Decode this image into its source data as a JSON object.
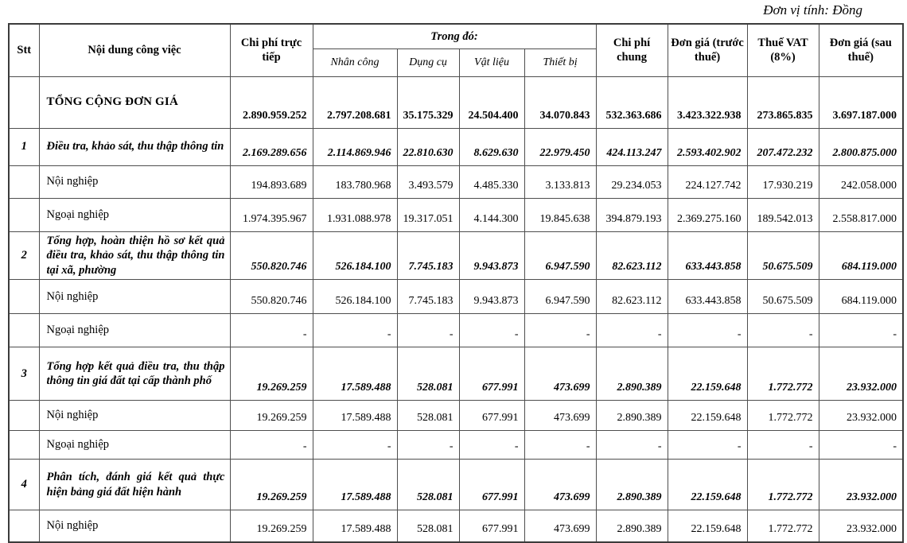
{
  "meta": {
    "unit_note": "Đơn vị tính: Đồng"
  },
  "table": {
    "headers": {
      "stt": "Stt",
      "noi_dung": "Nội dung công việc",
      "chi_phi_truc_tiep": "Chi phí trực tiếp",
      "trong_do": "Trong đó:",
      "sub": [
        "Nhân công",
        "Dụng cụ",
        "Vật liệu",
        "Thiết bị"
      ],
      "chi_phi_chung": "Chi phí chung",
      "don_gia_truoc_thue": "Đơn giá (trước thuế)",
      "thue_vat": "Thuế VAT (8%)",
      "don_gia_sau_thue": "Đơn giá (sau thuế)"
    },
    "rows": [
      {
        "stt": "",
        "style": "total",
        "label": "TỔNG CỘNG ĐƠN GIÁ",
        "values": [
          "2.890.959.252",
          "2.797.208.681",
          "35.175.329",
          "24.504.400",
          "34.070.843",
          "532.363.686",
          "3.423.322.938",
          "273.865.835",
          "3.697.187.000"
        ]
      },
      {
        "stt": "1",
        "style": "section",
        "label": "Điều tra, khảo sát, thu thập thông tin",
        "values": [
          "2.169.289.656",
          "2.114.869.946",
          "22.810.630",
          "8.629.630",
          "22.979.450",
          "424.113.247",
          "2.593.402.902",
          "207.472.232",
          "2.800.875.000"
        ]
      },
      {
        "stt": "",
        "style": "sub",
        "label": "Nội nghiệp",
        "values": [
          "194.893.689",
          "183.780.968",
          "3.493.579",
          "4.485.330",
          "3.133.813",
          "29.234.053",
          "224.127.742",
          "17.930.219",
          "242.058.000"
        ]
      },
      {
        "stt": "",
        "style": "sub",
        "label": "Ngoại nghiệp",
        "values": [
          "1.974.395.967",
          "1.931.088.978",
          "19.317.051",
          "4.144.300",
          "19.845.638",
          "394.879.193",
          "2.369.275.160",
          "189.542.013",
          "2.558.817.000"
        ]
      },
      {
        "stt": "2",
        "style": "section",
        "label": "Tổng hợp, hoàn thiện hồ sơ kết quả điều tra, khảo sát, thu thập thông tin tại xã, phường",
        "values": [
          "550.820.746",
          "526.184.100",
          "7.745.183",
          "9.943.873",
          "6.947.590",
          "82.623.112",
          "633.443.858",
          "50.675.509",
          "684.119.000"
        ]
      },
      {
        "stt": "",
        "style": "sub",
        "label": "Nội nghiệp",
        "values": [
          "550.820.746",
          "526.184.100",
          "7.745.183",
          "9.943.873",
          "6.947.590",
          "82.623.112",
          "633.443.858",
          "50.675.509",
          "684.119.000"
        ]
      },
      {
        "stt": "",
        "style": "sub",
        "label": "Ngoại nghiệp",
        "values": [
          "-",
          "-",
          "-",
          "-",
          "-",
          "-",
          "-",
          "-",
          "-"
        ]
      },
      {
        "stt": "3",
        "style": "section",
        "label": "Tổng hợp kết quả điều tra, thu thập thông tin giá đất tại cấp thành phố",
        "values": [
          "19.269.259",
          "17.589.488",
          "528.081",
          "677.991",
          "473.699",
          "2.890.389",
          "22.159.648",
          "1.772.772",
          "23.932.000"
        ]
      },
      {
        "stt": "",
        "style": "sub",
        "label": "Nội nghiệp",
        "values": [
          "19.269.259",
          "17.589.488",
          "528.081",
          "677.991",
          "473.699",
          "2.890.389",
          "22.159.648",
          "1.772.772",
          "23.932.000"
        ]
      },
      {
        "stt": "",
        "style": "sub",
        "label": "Ngoại nghiệp",
        "values": [
          "-",
          "-",
          "-",
          "-",
          "-",
          "-",
          "-",
          "-",
          "-"
        ]
      },
      {
        "stt": "4",
        "style": "section",
        "label": "Phân tích, đánh giá kết quả thực hiện bảng giá đất hiện hành",
        "values": [
          "19.269.259",
          "17.589.488",
          "528.081",
          "677.991",
          "473.699",
          "2.890.389",
          "22.159.648",
          "1.772.772",
          "23.932.000"
        ]
      },
      {
        "stt": "",
        "style": "sub",
        "label": "Nội nghiệp",
        "values": [
          "19.269.259",
          "17.589.488",
          "528.081",
          "677.991",
          "473.699",
          "2.890.389",
          "22.159.648",
          "1.772.772",
          "23.932.000"
        ]
      }
    ]
  }
}
